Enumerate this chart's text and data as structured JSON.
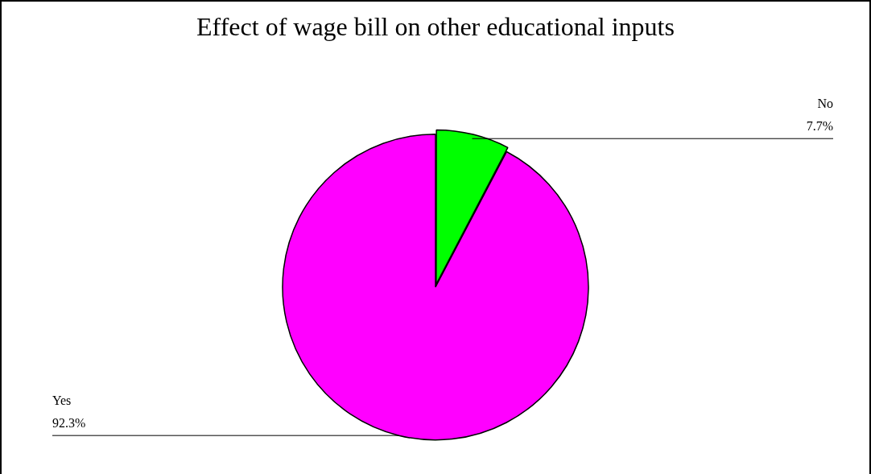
{
  "chart_data": {
    "type": "pie",
    "title": "Effect of wage bill on other educational inputs",
    "categories": [
      "No",
      "Yes"
    ],
    "values": [
      7.7,
      92.3
    ],
    "value_labels": [
      "7.7%",
      "92.3%"
    ],
    "colors": [
      "#00ff00",
      "#ff00ff"
    ],
    "legend": false
  }
}
